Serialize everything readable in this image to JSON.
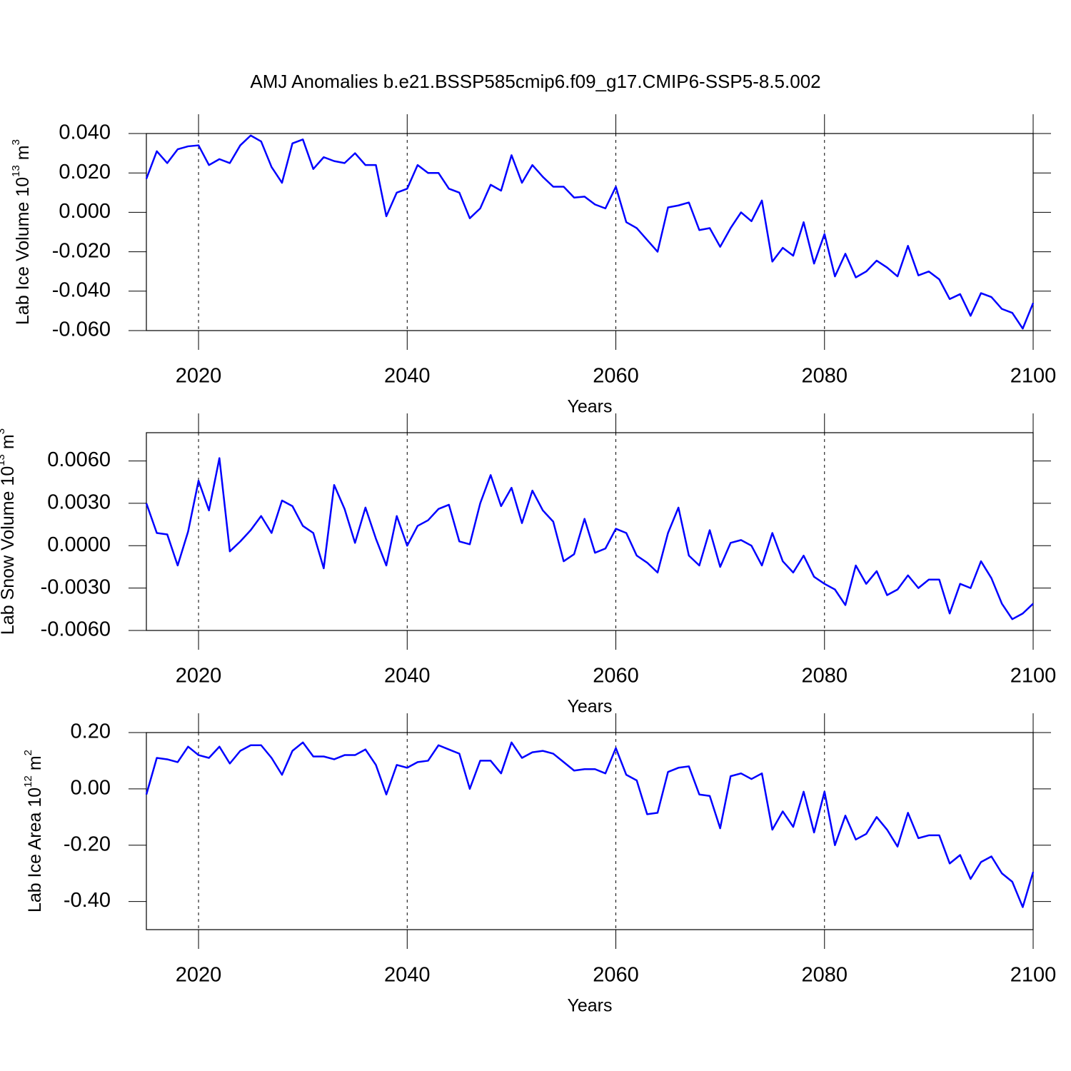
{
  "title": "AMJ Anomalies b.e21.BSSP585cmip6.f09_g17.CMIP6-SSP5-8.5.002",
  "chart_data": [
    {
      "type": "line",
      "xlabel": "Years",
      "ylabel": [
        "Lab Ice Volume 10",
        "13",
        "m",
        "3"
      ],
      "x": [
        2015,
        2016,
        2017,
        2018,
        2019,
        2020,
        2021,
        2022,
        2023,
        2024,
        2025,
        2026,
        2027,
        2028,
        2029,
        2030,
        2031,
        2032,
        2033,
        2034,
        2035,
        2036,
        2037,
        2038,
        2039,
        2040,
        2041,
        2042,
        2043,
        2044,
        2045,
        2046,
        2047,
        2048,
        2049,
        2050,
        2051,
        2052,
        2053,
        2054,
        2055,
        2056,
        2057,
        2058,
        2059,
        2060,
        2061,
        2062,
        2063,
        2064,
        2065,
        2066,
        2067,
        2068,
        2069,
        2070,
        2071,
        2072,
        2073,
        2074,
        2075,
        2076,
        2077,
        2078,
        2079,
        2080,
        2081,
        2082,
        2083,
        2084,
        2085,
        2086,
        2087,
        2088,
        2089,
        2090,
        2091,
        2092,
        2093,
        2094,
        2095,
        2096,
        2097,
        2098,
        2099,
        2100
      ],
      "series": [
        {
          "color": "#0000ff",
          "values": [
            0.017,
            0.031,
            0.025,
            0.032,
            0.0335,
            0.034,
            0.024,
            0.027,
            0.025,
            0.034,
            0.039,
            0.036,
            0.023,
            0.015,
            0.035,
            0.037,
            0.022,
            0.028,
            0.026,
            0.025,
            0.03,
            0.024,
            0.024,
            -0.002,
            0.01,
            0.012,
            0.024,
            0.02,
            0.02,
            0.012,
            0.01,
            -0.003,
            0.002,
            0.014,
            0.011,
            0.029,
            0.015,
            0.024,
            0.018,
            0.013,
            0.013,
            0.0075,
            0.008,
            0.004,
            0.002,
            0.013,
            -0.005,
            -0.008,
            -0.014,
            -0.02,
            0.0025,
            0.0035,
            0.005,
            -0.009,
            -0.008,
            -0.0175,
            -0.008,
            0.0,
            -0.0045,
            0.006,
            -0.025,
            -0.018,
            -0.022,
            -0.005,
            -0.026,
            -0.011,
            -0.0325,
            -0.021,
            -0.033,
            -0.03,
            -0.0245,
            -0.028,
            -0.0325,
            -0.017,
            -0.032,
            -0.03,
            -0.034,
            -0.044,
            -0.0415,
            -0.0525,
            -0.041,
            -0.043,
            -0.049,
            -0.051,
            -0.059,
            -0.046
          ]
        }
      ],
      "xlim": [
        2015,
        2100
      ],
      "xticks": [
        2020,
        2040,
        2060,
        2080,
        2100
      ],
      "ylim": [
        -0.06,
        0.04
      ],
      "yticks": [
        {
          "value": -0.06,
          "label": "-0.060"
        },
        {
          "value": -0.04,
          "label": "-0.040"
        },
        {
          "value": -0.02,
          "label": "-0.020"
        },
        {
          "value": 0,
          "label": "0.000"
        },
        {
          "value": 0.02,
          "label": "0.020"
        },
        {
          "value": 0.04,
          "label": "0.040"
        }
      ],
      "grid": "x"
    },
    {
      "type": "line",
      "xlabel": "Years",
      "ylabel": [
        "Lab Snow Volume 10",
        "13",
        "m",
        "3"
      ],
      "x": [
        2015,
        2016,
        2017,
        2018,
        2019,
        2020,
        2021,
        2022,
        2023,
        2024,
        2025,
        2026,
        2027,
        2028,
        2029,
        2030,
        2031,
        2032,
        2033,
        2034,
        2035,
        2036,
        2037,
        2038,
        2039,
        2040,
        2041,
        2042,
        2043,
        2044,
        2045,
        2046,
        2047,
        2048,
        2049,
        2050,
        2051,
        2052,
        2053,
        2054,
        2055,
        2056,
        2057,
        2058,
        2059,
        2060,
        2061,
        2062,
        2063,
        2064,
        2065,
        2066,
        2067,
        2068,
        2069,
        2070,
        2071,
        2072,
        2073,
        2074,
        2075,
        2076,
        2077,
        2078,
        2079,
        2080,
        2081,
        2082,
        2083,
        2084,
        2085,
        2086,
        2087,
        2088,
        2089,
        2090,
        2091,
        2092,
        2093,
        2094,
        2095,
        2096,
        2097,
        2098,
        2099,
        2100
      ],
      "series": [
        {
          "color": "#0000ff",
          "values": [
            0.003,
            0.0009,
            0.0008,
            -0.0014,
            0.001,
            0.0046,
            0.0025,
            0.0062,
            -0.0004,
            0.0003,
            0.0011,
            0.0021,
            0.0009,
            0.0032,
            0.0028,
            0.0014,
            0.0009,
            -0.0016,
            0.0043,
            0.0026,
            0.0002,
            0.0027,
            0.0005,
            -0.0014,
            0.0021,
            0.0,
            0.0014,
            0.0018,
            0.0026,
            0.0029,
            0.0003,
            0.0001,
            0.003,
            0.005,
            0.0028,
            0.0041,
            0.0016,
            0.0039,
            0.0025,
            0.0017,
            -0.0011,
            -0.0006,
            0.0019,
            -0.0005,
            -0.0002,
            0.0012,
            0.0009,
            -0.0007,
            -0.0012,
            -0.0019,
            0.0009,
            0.0027,
            -0.0007,
            -0.0014,
            0.0011,
            -0.0015,
            0.0002,
            0.0004,
            0.0,
            -0.0014,
            0.0009,
            -0.0011,
            -0.0019,
            -0.0007,
            -0.0022,
            -0.0027,
            -0.0031,
            -0.0042,
            -0.0014,
            -0.0027,
            -0.0018,
            -0.0035,
            -0.0031,
            -0.0021,
            -0.003,
            -0.0024,
            -0.0024,
            -0.0048,
            -0.0027,
            -0.003,
            -0.0011,
            -0.0023,
            -0.0041,
            -0.0052,
            -0.0048,
            -0.0041
          ]
        }
      ],
      "xlim": [
        2015,
        2100
      ],
      "xticks": [
        2020,
        2040,
        2060,
        2080,
        2100
      ],
      "ylim": [
        -0.006,
        0.008
      ],
      "yticks": [
        {
          "value": -0.006,
          "label": "-0.0060"
        },
        {
          "value": -0.003,
          "label": "-0.0030"
        },
        {
          "value": 0,
          "label": "0.0000"
        },
        {
          "value": 0.003,
          "label": "0.0030"
        },
        {
          "value": 0.006,
          "label": "0.0060"
        }
      ],
      "grid": "x"
    },
    {
      "type": "line",
      "xlabel": "Years",
      "ylabel": [
        "Lab Ice Area 10",
        "12",
        "m",
        "2"
      ],
      "x": [
        2015,
        2016,
        2017,
        2018,
        2019,
        2020,
        2021,
        2022,
        2023,
        2024,
        2025,
        2026,
        2027,
        2028,
        2029,
        2030,
        2031,
        2032,
        2033,
        2034,
        2035,
        2036,
        2037,
        2038,
        2039,
        2040,
        2041,
        2042,
        2043,
        2044,
        2045,
        2046,
        2047,
        2048,
        2049,
        2050,
        2051,
        2052,
        2053,
        2054,
        2055,
        2056,
        2057,
        2058,
        2059,
        2060,
        2061,
        2062,
        2063,
        2064,
        2065,
        2066,
        2067,
        2068,
        2069,
        2070,
        2071,
        2072,
        2073,
        2074,
        2075,
        2076,
        2077,
        2078,
        2079,
        2080,
        2081,
        2082,
        2083,
        2084,
        2085,
        2086,
        2087,
        2088,
        2089,
        2090,
        2091,
        2092,
        2093,
        2094,
        2095,
        2096,
        2097,
        2098,
        2099,
        2100
      ],
      "series": [
        {
          "color": "#0000ff",
          "values": [
            -0.02,
            0.11,
            0.105,
            0.095,
            0.15,
            0.12,
            0.11,
            0.15,
            0.09,
            0.135,
            0.155,
            0.155,
            0.11,
            0.05,
            0.135,
            0.165,
            0.115,
            0.115,
            0.105,
            0.12,
            0.12,
            0.14,
            0.085,
            -0.02,
            0.085,
            0.075,
            0.095,
            0.1,
            0.155,
            0.14,
            0.125,
            0.0,
            0.1,
            0.1,
            0.055,
            0.165,
            0.11,
            0.13,
            0.135,
            0.125,
            0.095,
            0.065,
            0.07,
            0.07,
            0.055,
            0.145,
            0.05,
            0.03,
            -0.09,
            -0.085,
            0.06,
            0.075,
            0.08,
            -0.02,
            -0.025,
            -0.14,
            0.045,
            0.055,
            0.035,
            0.055,
            -0.145,
            -0.08,
            -0.135,
            -0.01,
            -0.155,
            -0.01,
            -0.2,
            -0.095,
            -0.18,
            -0.16,
            -0.1,
            -0.145,
            -0.205,
            -0.085,
            -0.175,
            -0.165,
            -0.165,
            -0.265,
            -0.235,
            -0.32,
            -0.26,
            -0.24,
            -0.3,
            -0.33,
            -0.42,
            -0.295
          ]
        }
      ],
      "xlim": [
        2015,
        2100
      ],
      "xticks": [
        2020,
        2040,
        2060,
        2080,
        2100
      ],
      "ylim": [
        -0.5,
        0.2
      ],
      "yticks": [
        {
          "value": -0.4,
          "label": "-0.40"
        },
        {
          "value": -0.2,
          "label": "-0.20"
        },
        {
          "value": 0,
          "label": "0.00"
        },
        {
          "value": 0.2,
          "label": "0.20"
        }
      ],
      "grid": "x"
    }
  ]
}
